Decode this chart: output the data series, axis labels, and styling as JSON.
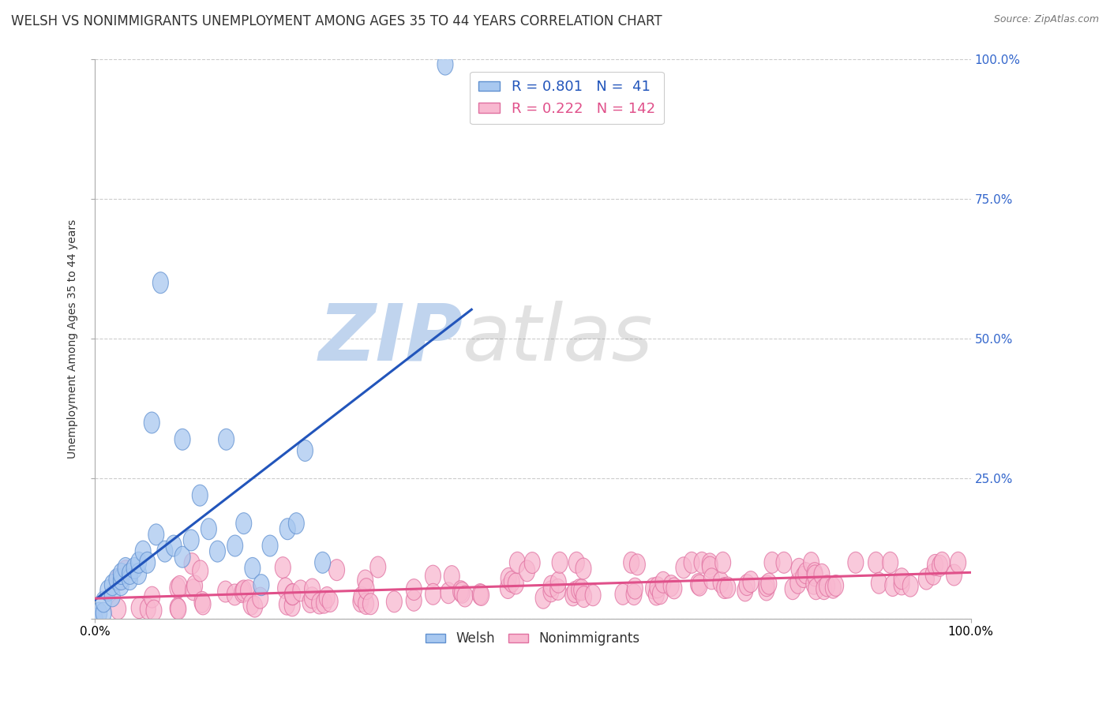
{
  "title": "WELSH VS NONIMMIGRANTS UNEMPLOYMENT AMONG AGES 35 TO 44 YEARS CORRELATION CHART",
  "source": "Source: ZipAtlas.com",
  "ylabel": "Unemployment Among Ages 35 to 44 years",
  "legend_welsh": "Welsh",
  "legend_nonimmigrants": "Nonimmigrants",
  "R_welsh": "0.801",
  "N_welsh": "41",
  "R_nonimmigrants": "0.222",
  "N_nonimmigrants": "142",
  "welsh_color": "#a8c8f0",
  "welsh_edge_color": "#6090d0",
  "welsh_line_color": "#2255bb",
  "nonimmigrant_color": "#f8b8d0",
  "nonimmigrant_edge_color": "#e070a0",
  "nonimmigrant_line_color": "#e0508a",
  "watermark_zip_color": "#c0d4ee",
  "watermark_atlas_color": "#888888",
  "background_color": "#ffffff",
  "grid_color": "#cccccc",
  "right_tick_color": "#3366cc",
  "xlim": [
    0.0,
    1.0
  ],
  "ylim": [
    0.0,
    1.0
  ],
  "yticks": [
    0.0,
    0.25,
    0.5,
    0.75,
    1.0
  ],
  "right_ytick_labels": [
    "",
    "25.0%",
    "50.0%",
    "75.0%",
    "100.0%"
  ],
  "xtick_labels": [
    "0.0%",
    "100.0%"
  ],
  "welsh_x": [
    0.0,
    0.005,
    0.01,
    0.01,
    0.015,
    0.02,
    0.02,
    0.025,
    0.03,
    0.03,
    0.03,
    0.035,
    0.04,
    0.04,
    0.045,
    0.05,
    0.05,
    0.055,
    0.06,
    0.065,
    0.07,
    0.075,
    0.08,
    0.09,
    0.1,
    0.1,
    0.11,
    0.12,
    0.13,
    0.14,
    0.15,
    0.16,
    0.17,
    0.18,
    0.19,
    0.2,
    0.22,
    0.23,
    0.24,
    0.26,
    0.4
  ],
  "welsh_y": [
    0.0,
    0.01,
    0.01,
    0.03,
    0.05,
    0.04,
    0.06,
    0.07,
    0.06,
    0.07,
    0.08,
    0.09,
    0.07,
    0.08,
    0.09,
    0.08,
    0.1,
    0.12,
    0.1,
    0.35,
    0.15,
    0.6,
    0.12,
    0.13,
    0.11,
    0.32,
    0.14,
    0.22,
    0.16,
    0.12,
    0.32,
    0.13,
    0.17,
    0.09,
    0.06,
    0.13,
    0.16,
    0.17,
    0.3,
    0.1,
    0.99
  ],
  "title_fontsize": 12,
  "axis_label_fontsize": 10,
  "legend_fontsize": 13
}
